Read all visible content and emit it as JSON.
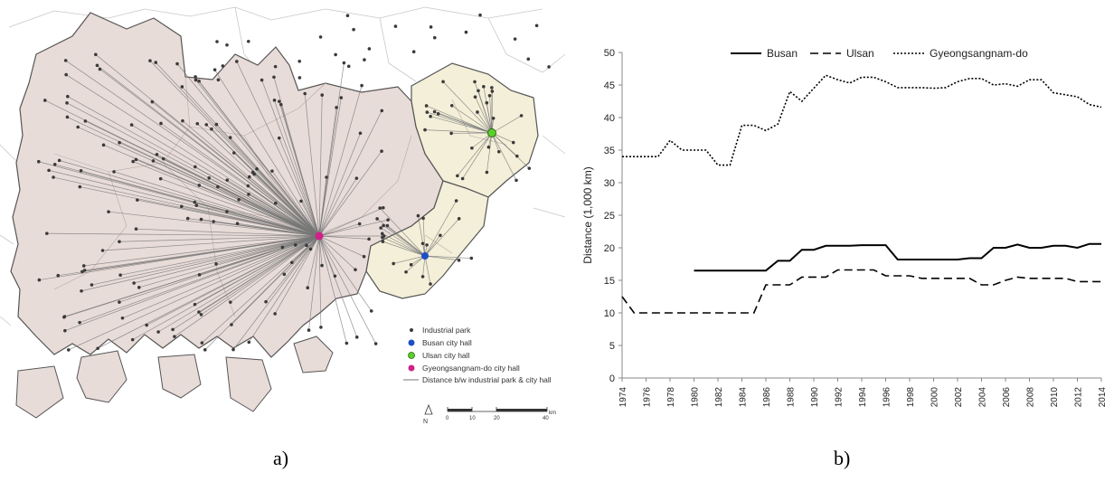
{
  "panels": {
    "a_caption": "a)",
    "b_caption": "b)"
  },
  "map": {
    "legend": {
      "industrial_park": "Industrial park",
      "busan_hall": "Busan city hall",
      "ulsan_hall": "Ulsan city hall",
      "gyeongnam_hall": "Gyeongsangnam-do city hall",
      "distance_line": "Distance b/w industrial park & city hall"
    },
    "colors": {
      "gyeongnam_region": "#e8dcd8",
      "busan_region": "#f3efd8",
      "ulsan_region": "#f3efd8",
      "park_dot": "#3a3a3a",
      "busan_hall": "#1f4fc8",
      "ulsan_hall": "#5ad02a",
      "gyeongnam_hall": "#d0208a",
      "line": "#777777"
    },
    "scale_bar": {
      "ticks": [
        "0",
        "10",
        "20",
        "40"
      ],
      "unit": "km"
    },
    "north_arrow": "N"
  },
  "chart_data": {
    "type": "line",
    "title": "",
    "xlabel": "",
    "ylabel": "Distance (1,000 km)",
    "ylim": [
      0,
      50
    ],
    "yticks": [
      0,
      5,
      10,
      15,
      20,
      25,
      30,
      35,
      40,
      45,
      50
    ],
    "xlim": [
      1974,
      2014
    ],
    "xticks": [
      1974,
      1976,
      1978,
      1980,
      1982,
      1984,
      1986,
      1988,
      1990,
      1992,
      1994,
      1996,
      1998,
      2000,
      2002,
      2004,
      2006,
      2008,
      2010,
      2012,
      2014
    ],
    "grid": false,
    "legend_position": "top",
    "series": [
      {
        "name": "Busan",
        "style": "solid",
        "points": [
          [
            1980,
            16.5
          ],
          [
            1981,
            16.5
          ],
          [
            1982,
            16.5
          ],
          [
            1983,
            16.5
          ],
          [
            1984,
            16.5
          ],
          [
            1985,
            16.5
          ],
          [
            1986,
            16.5
          ],
          [
            1987,
            18
          ],
          [
            1988,
            18
          ],
          [
            1989,
            19.7
          ],
          [
            1990,
            19.7
          ],
          [
            1991,
            20.3
          ],
          [
            1992,
            20.3
          ],
          [
            1993,
            20.3
          ],
          [
            1994,
            20.4
          ],
          [
            1995,
            20.4
          ],
          [
            1996,
            20.4
          ],
          [
            1997,
            18.2
          ],
          [
            1998,
            18.2
          ],
          [
            1999,
            18.2
          ],
          [
            2000,
            18.2
          ],
          [
            2001,
            18.2
          ],
          [
            2002,
            18.2
          ],
          [
            2003,
            18.4
          ],
          [
            2004,
            18.4
          ],
          [
            2005,
            20
          ],
          [
            2006,
            20
          ],
          [
            2007,
            20.5
          ],
          [
            2008,
            20
          ],
          [
            2009,
            20
          ],
          [
            2010,
            20.3
          ],
          [
            2011,
            20.3
          ],
          [
            2012,
            20
          ],
          [
            2013,
            20.6
          ],
          [
            2014,
            20.6
          ]
        ]
      },
      {
        "name": "Ulsan",
        "style": "dashed",
        "points": [
          [
            1974,
            12.5
          ],
          [
            1975,
            10
          ],
          [
            1976,
            10
          ],
          [
            1977,
            10
          ],
          [
            1978,
            10
          ],
          [
            1979,
            10
          ],
          [
            1980,
            10
          ],
          [
            1981,
            10
          ],
          [
            1982,
            10
          ],
          [
            1983,
            10
          ],
          [
            1984,
            10
          ],
          [
            1985,
            10
          ],
          [
            1986,
            14.3
          ],
          [
            1987,
            14.3
          ],
          [
            1988,
            14.3
          ],
          [
            1989,
            15.5
          ],
          [
            1990,
            15.5
          ],
          [
            1991,
            15.5
          ],
          [
            1992,
            16.6
          ],
          [
            1993,
            16.6
          ],
          [
            1994,
            16.6
          ],
          [
            1995,
            16.6
          ],
          [
            1996,
            15.7
          ],
          [
            1997,
            15.7
          ],
          [
            1998,
            15.7
          ],
          [
            1999,
            15.3
          ],
          [
            2000,
            15.3
          ],
          [
            2001,
            15.3
          ],
          [
            2002,
            15.3
          ],
          [
            2003,
            15.3
          ],
          [
            2004,
            14.3
          ],
          [
            2005,
            14.3
          ],
          [
            2006,
            15
          ],
          [
            2007,
            15.5
          ],
          [
            2008,
            15.3
          ],
          [
            2009,
            15.3
          ],
          [
            2010,
            15.3
          ],
          [
            2011,
            15.3
          ],
          [
            2012,
            14.8
          ],
          [
            2013,
            14.8
          ],
          [
            2014,
            14.8
          ]
        ]
      },
      {
        "name": "Gyeongsangnam-do",
        "style": "dotted",
        "points": [
          [
            1974,
            34
          ],
          [
            1975,
            34
          ],
          [
            1976,
            34
          ],
          [
            1977,
            34
          ],
          [
            1978,
            36.5
          ],
          [
            1979,
            35
          ],
          [
            1980,
            35
          ],
          [
            1981,
            35
          ],
          [
            1982,
            32.7
          ],
          [
            1983,
            32.7
          ],
          [
            1984,
            38.8
          ],
          [
            1985,
            38.8
          ],
          [
            1986,
            38
          ],
          [
            1987,
            39
          ],
          [
            1988,
            44
          ],
          [
            1989,
            42.5
          ],
          [
            1990,
            44.5
          ],
          [
            1991,
            46.5
          ],
          [
            1992,
            45.8
          ],
          [
            1993,
            45.3
          ],
          [
            1994,
            46.2
          ],
          [
            1995,
            46.2
          ],
          [
            1996,
            45.5
          ],
          [
            1997,
            44.6
          ],
          [
            1998,
            44.6
          ],
          [
            1999,
            44.6
          ],
          [
            2000,
            44.5
          ],
          [
            2001,
            44.6
          ],
          [
            2002,
            45.5
          ],
          [
            2003,
            46
          ],
          [
            2004,
            46
          ],
          [
            2005,
            45
          ],
          [
            2006,
            45.2
          ],
          [
            2007,
            44.8
          ],
          [
            2008,
            45.8
          ],
          [
            2009,
            45.8
          ],
          [
            2010,
            43.8
          ],
          [
            2011,
            43.5
          ],
          [
            2012,
            43.2
          ],
          [
            2013,
            42
          ],
          [
            2014,
            41.6
          ]
        ]
      }
    ]
  }
}
